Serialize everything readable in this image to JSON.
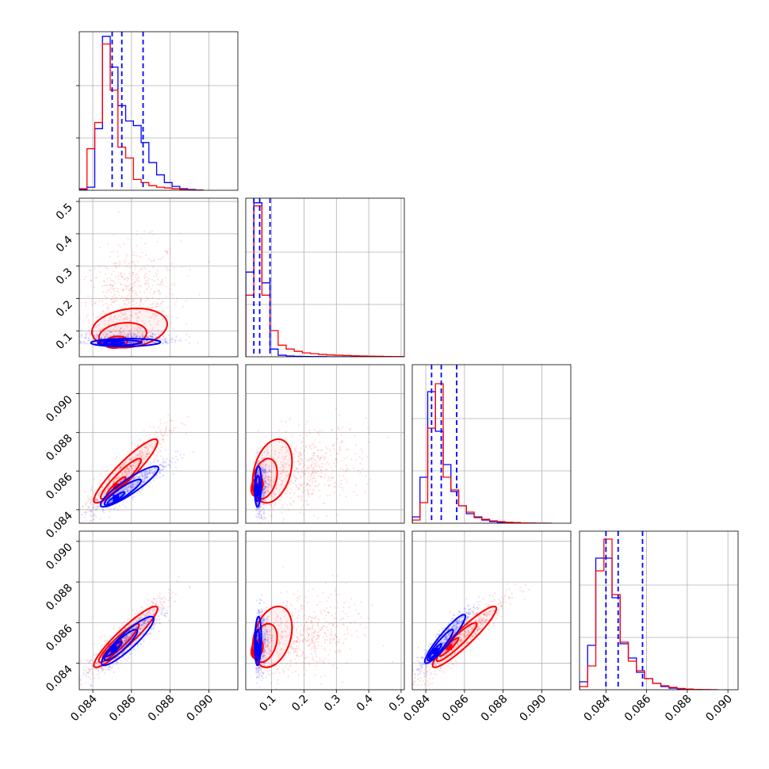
{
  "chart_data": {
    "type": "corner",
    "grid": true,
    "colors": {
      "blue": "#0000ff",
      "red": "#ff0000"
    },
    "series": [
      {
        "color": "#0000ff",
        "hist_quantiles_dashed": true
      },
      {
        "color": "#ff0000"
      }
    ],
    "parameters": [
      {
        "range": [
          0.0833,
          0.0915
        ],
        "ticks": [
          0.084,
          0.086,
          0.088,
          0.09
        ],
        "tick_labels": [
          "0.084",
          "0.086",
          "0.088",
          "0.090"
        ]
      },
      {
        "range": [
          0.02,
          0.51
        ],
        "ticks": [
          0.1,
          0.2,
          0.3,
          0.4,
          0.5
        ],
        "tick_labels": [
          "0.1",
          "0.2",
          "0.3",
          "0.4",
          "0.5"
        ]
      },
      {
        "range": [
          0.0833,
          0.0915
        ],
        "ticks": [
          0.084,
          0.086,
          0.088,
          0.09
        ],
        "tick_labels": [
          "0.084",
          "0.086",
          "0.088",
          "0.090"
        ]
      },
      {
        "range": [
          0.0827,
          0.0905
        ],
        "ticks": [
          0.084,
          0.086,
          0.088,
          0.09
        ],
        "tick_labels": [
          "0.084",
          "0.086",
          "0.088",
          "0.090"
        ]
      }
    ],
    "histograms": [
      {
        "bins": [
          0.0833,
          0.0837,
          0.0841,
          0.0845,
          0.0849,
          0.0853,
          0.0857,
          0.0861,
          0.0865,
          0.0869,
          0.0873,
          0.0877,
          0.0881,
          0.0885,
          0.0889,
          0.0893,
          0.0897
        ],
        "blue": [
          0.005,
          0.02,
          0.4,
          1.0,
          0.8,
          0.55,
          0.45,
          0.42,
          0.31,
          0.18,
          0.1,
          0.05,
          0.025,
          0.01,
          0.005,
          0.002
        ],
        "red": [
          0.01,
          0.27,
          0.44,
          0.95,
          0.65,
          0.28,
          0.21,
          0.07,
          0.05,
          0.03,
          0.02,
          0.015,
          0.01,
          0.005,
          0.002,
          0.001
        ],
        "quantiles": [
          0.085,
          0.0855,
          0.0866
        ],
        "ymax": 1.03
      },
      {
        "bins": [
          0.02,
          0.045,
          0.07,
          0.095,
          0.12,
          0.145,
          0.17,
          0.195,
          0.22,
          0.245,
          0.27,
          0.295,
          0.32,
          0.345,
          0.37,
          0.395,
          0.42,
          0.445,
          0.47,
          0.495,
          0.51
        ],
        "blue": [
          0.55,
          1.0,
          0.48,
          0.05,
          0.01,
          0.005,
          0.003,
          0.002,
          0.001,
          0.001,
          0.0,
          0.0,
          0.0,
          0.0,
          0.0,
          0.0,
          0.0,
          0.0,
          0.0,
          0.0
        ],
        "red": [
          0.4,
          0.98,
          0.4,
          0.17,
          0.075,
          0.05,
          0.035,
          0.025,
          0.02,
          0.015,
          0.012,
          0.01,
          0.008,
          0.006,
          0.005,
          0.004,
          0.003,
          0.002,
          0.001,
          0.001
        ],
        "quantiles": [
          0.045,
          0.063,
          0.095
        ],
        "ymax": 1.03
      },
      {
        "bins": [
          0.0833,
          0.0837,
          0.0841,
          0.0845,
          0.0849,
          0.0853,
          0.0857,
          0.0861,
          0.0865,
          0.0869,
          0.0873,
          0.0877,
          0.0881,
          0.0885,
          0.0889,
          0.0893,
          0.0897,
          0.0901,
          0.0905
        ],
        "blue": [
          0.04,
          0.29,
          0.83,
          0.58,
          0.37,
          0.2,
          0.11,
          0.06,
          0.04,
          0.02,
          0.01,
          0.005,
          0.002,
          0.001,
          0.0,
          0.0,
          0.0,
          0.0
        ],
        "red": [
          0.02,
          0.13,
          0.6,
          0.88,
          0.29,
          0.21,
          0.11,
          0.07,
          0.035,
          0.025,
          0.015,
          0.01,
          0.006,
          0.004,
          0.002,
          0.001,
          0.0,
          0.0
        ],
        "quantiles": [
          0.0843,
          0.0848,
          0.0856
        ],
        "ymax": 1.0
      },
      {
        "bins": [
          0.0827,
          0.0831,
          0.0835,
          0.0839,
          0.0843,
          0.0847,
          0.0851,
          0.0855,
          0.0859,
          0.0863,
          0.0867,
          0.0871,
          0.0875,
          0.0879,
          0.0883,
          0.0887,
          0.0891,
          0.0895
        ],
        "blue": [
          0.05,
          0.28,
          0.83,
          0.83,
          0.58,
          0.29,
          0.2,
          0.11,
          0.07,
          0.04,
          0.02,
          0.01,
          0.005,
          0.002,
          0.001,
          0.0,
          0.0
        ],
        "red": [
          0.02,
          0.15,
          0.75,
          0.95,
          0.6,
          0.3,
          0.18,
          0.12,
          0.07,
          0.04,
          0.025,
          0.015,
          0.008,
          0.004,
          0.002,
          0.001,
          0.0
        ],
        "quantiles": [
          0.084,
          0.0846,
          0.0858
        ],
        "ymax": 1.0
      }
    ],
    "scatter_panels": [
      {
        "row": 1,
        "col": 0,
        "blue": {
          "center": [
            0.0857,
            0.066
          ],
          "spread": [
            0.0012,
            0.018
          ],
          "corr": 0.1,
          "peak": [
            0.0851,
            0.063
          ]
        },
        "red": {
          "center": [
            0.0859,
            0.19
          ],
          "spread": [
            0.0013,
            0.09
          ],
          "corr": 0.2,
          "peak": [
            0.0852,
            0.065
          ]
        }
      },
      {
        "row": 2,
        "col": 0,
        "blue": {
          "center": [
            0.0859,
            0.0852
          ],
          "spread": [
            0.001,
            0.0007
          ],
          "corr": 0.9,
          "peak": [
            0.0852,
            0.0846
          ]
        },
        "red": {
          "center": [
            0.0857,
            0.086
          ],
          "spread": [
            0.0011,
            0.0011
          ],
          "corr": 0.92,
          "peak": [
            0.0852,
            0.0852
          ]
        }
      },
      {
        "row": 2,
        "col": 1,
        "blue": {
          "center": [
            0.063,
            0.0852
          ],
          "spread": [
            0.015,
            0.0007
          ],
          "corr": 0.15,
          "peak": [
            0.055,
            0.085
          ]
        },
        "red": {
          "center": [
            0.19,
            0.086
          ],
          "spread": [
            0.09,
            0.0011
          ],
          "corr": 0.3,
          "peak": [
            0.055,
            0.0852
          ]
        }
      },
      {
        "row": 3,
        "col": 0,
        "blue": {
          "center": [
            0.0858,
            0.0851
          ],
          "spread": [
            0.0009,
            0.0008
          ],
          "corr": 0.9,
          "peak": [
            0.0851,
            0.0847
          ]
        },
        "red": {
          "center": [
            0.0857,
            0.0853
          ],
          "spread": [
            0.0011,
            0.001
          ],
          "corr": 0.93,
          "peak": [
            0.085,
            0.0847
          ]
        }
      },
      {
        "row": 3,
        "col": 1,
        "blue": {
          "center": [
            0.063,
            0.0851
          ],
          "spread": [
            0.015,
            0.0008
          ],
          "corr": 0.15,
          "peak": [
            0.055,
            0.0847
          ]
        },
        "red": {
          "center": [
            0.19,
            0.0853
          ],
          "spread": [
            0.09,
            0.001
          ],
          "corr": 0.3,
          "peak": [
            0.055,
            0.0847
          ]
        }
      },
      {
        "row": 3,
        "col": 2,
        "blue": {
          "center": [
            0.085,
            0.0852
          ],
          "spread": [
            0.0007,
            0.0008
          ],
          "corr": 0.93,
          "peak": [
            0.0845,
            0.0846
          ]
        },
        "red": {
          "center": [
            0.086,
            0.0853
          ],
          "spread": [
            0.0011,
            0.001
          ],
          "corr": 0.93,
          "peak": [
            0.0852,
            0.0848
          ]
        }
      }
    ]
  }
}
